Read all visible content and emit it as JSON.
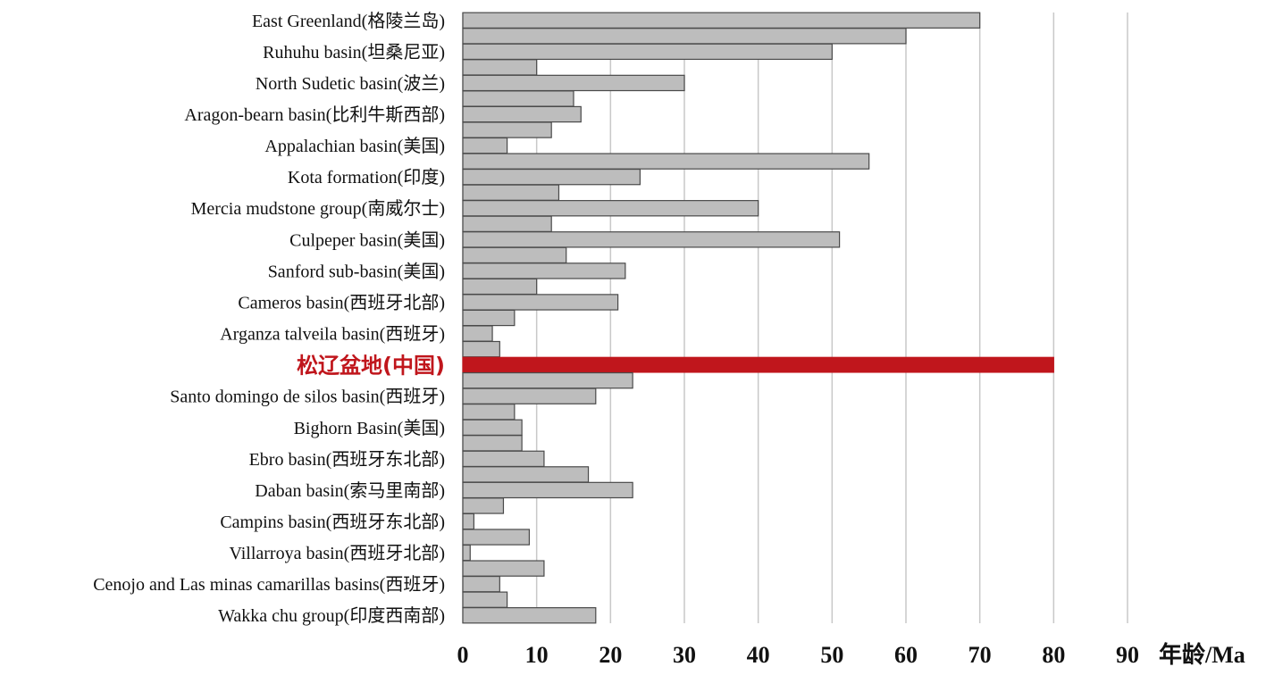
{
  "chart_data": {
    "type": "bar",
    "orientation": "horizontal",
    "xlabel": "年龄/Ma",
    "xlim": [
      0,
      90
    ],
    "xticks": [
      0,
      10,
      20,
      30,
      40,
      50,
      60,
      70,
      80,
      90
    ],
    "grid": true,
    "colors": {
      "bar": "#bdbdbd",
      "bar_edge": "#4a4a4a",
      "highlight": "#c0161c",
      "grid": "#c8c8c8"
    },
    "bars": [
      {
        "label": "East Greenland(格陵兰岛)",
        "value": 70
      },
      {
        "label": "",
        "value": 60
      },
      {
        "label": "Ruhuhu basin(坦桑尼亚)",
        "value": 50
      },
      {
        "label": "",
        "value": 10
      },
      {
        "label": "North Sudetic basin(波兰)",
        "value": 30
      },
      {
        "label": "",
        "value": 15
      },
      {
        "label": "Aragon-bearn basin(比利牛斯西部)",
        "value": 16
      },
      {
        "label": "",
        "value": 12
      },
      {
        "label": "Appalachian basin(美国)",
        "value": 6
      },
      {
        "label": "",
        "value": 55
      },
      {
        "label": "Kota formation(印度)",
        "value": 24
      },
      {
        "label": "",
        "value": 13
      },
      {
        "label": "Mercia mudstone group(南威尔士)",
        "value": 40
      },
      {
        "label": "",
        "value": 12
      },
      {
        "label": "Culpeper basin(美国)",
        "value": 51
      },
      {
        "label": "",
        "value": 14
      },
      {
        "label": "Sanford sub-basin(美国)",
        "value": 22
      },
      {
        "label": "",
        "value": 10
      },
      {
        "label": "Cameros basin(西班牙北部)",
        "value": 21
      },
      {
        "label": "",
        "value": 7
      },
      {
        "label": "Arganza talveila  basin(西班牙)",
        "value": 4
      },
      {
        "label": "",
        "value": 5
      },
      {
        "label": "松辽盆地(中国)",
        "value": 80,
        "highlight": true
      },
      {
        "label": "",
        "value": 23
      },
      {
        "label": "Santo domingo de silos basin(西班牙)",
        "value": 18
      },
      {
        "label": "",
        "value": 7
      },
      {
        "label": "Bighorn Basin(美国)",
        "value": 8
      },
      {
        "label": "",
        "value": 8
      },
      {
        "label": "Ebro basin(西班牙东北部)",
        "value": 11
      },
      {
        "label": "",
        "value": 17
      },
      {
        "label": "Daban basin(索马里南部)",
        "value": 23
      },
      {
        "label": "",
        "value": 5.5
      },
      {
        "label": "Campins basin(西班牙东北部)",
        "value": 1.5
      },
      {
        "label": "",
        "value": 9
      },
      {
        "label": "Villarroya  basin(西班牙北部)",
        "value": 1
      },
      {
        "label": "",
        "value": 11
      },
      {
        "label": "Cenojo and Las minas camarillas  basins(西班牙)",
        "value": 5
      },
      {
        "label": "",
        "value": 6
      },
      {
        "label": "Wakka chu group(印度西南部)",
        "value": 18
      }
    ]
  }
}
